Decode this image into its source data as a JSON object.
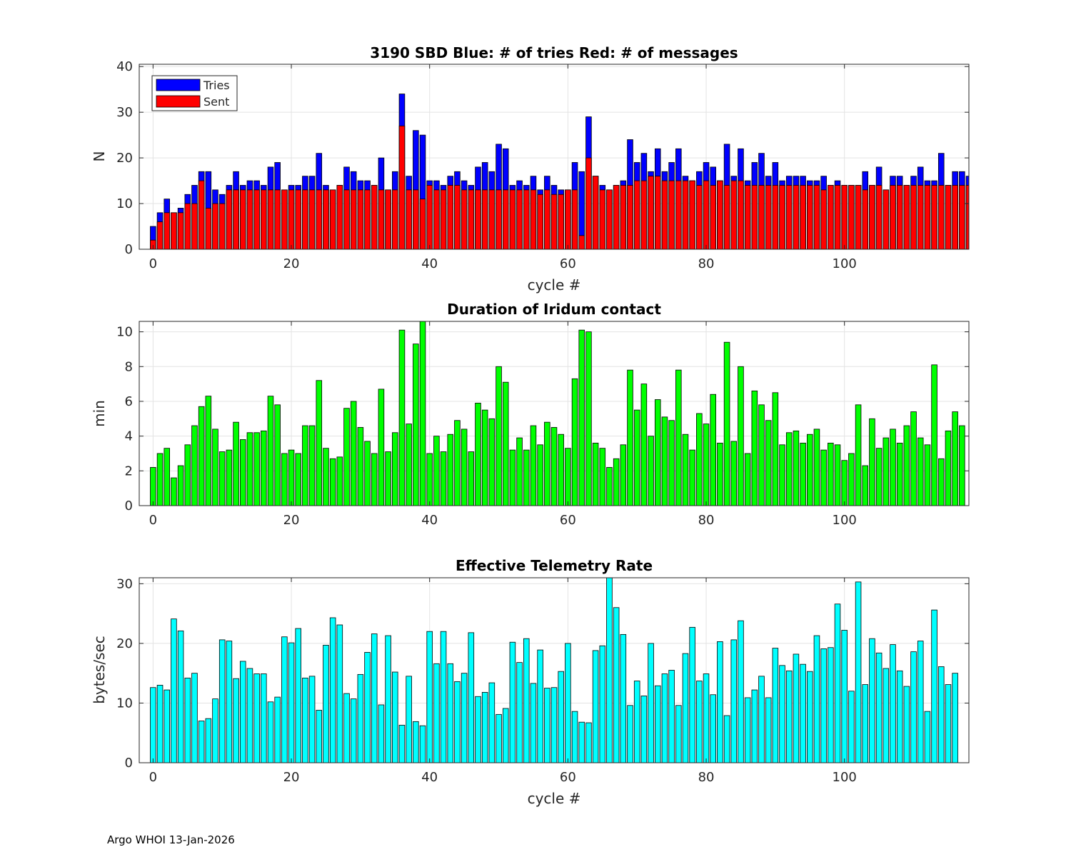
{
  "footer_text": "Argo WHOI 13-Jan-2026",
  "colors": {
    "tries": "#0000ff",
    "sent": "#ff0000",
    "duration": "#00ff00",
    "rate": "#00ffff",
    "grid": "#e3e3e3",
    "axis": "#262626"
  },
  "chart_data": [
    {
      "type": "bar",
      "title": "3190 SBD  Blue: # of tries   Red: # of messages",
      "xlabel": "cycle #",
      "ylabel": "N",
      "xlim": [
        -2,
        118
      ],
      "ylim": [
        0,
        40.5
      ],
      "xticks": [
        0,
        20,
        40,
        60,
        80,
        100
      ],
      "yticks": [
        0,
        10,
        20,
        30,
        40
      ],
      "grid": true,
      "legend": {
        "position": "top-left",
        "entries": [
          "Tries",
          "Sent"
        ]
      },
      "x_start": 0,
      "series": [
        {
          "name": "Tries",
          "values": [
            5,
            8,
            11,
            8,
            9,
            12,
            14,
            17,
            17,
            13,
            12,
            14,
            17,
            14,
            15,
            15,
            14,
            18,
            19,
            13,
            14,
            14,
            16,
            16,
            21,
            14,
            13,
            14,
            18,
            17,
            15,
            15,
            14,
            20,
            13,
            17,
            34,
            16,
            26,
            25,
            15,
            15,
            14,
            16,
            17,
            15,
            14,
            18,
            19,
            17,
            23,
            22,
            14,
            15,
            14,
            16,
            13,
            16,
            14,
            13,
            13,
            19,
            17,
            29,
            16,
            14,
            13,
            14,
            15,
            24,
            19,
            21,
            17,
            22,
            17,
            19,
            22,
            16,
            15,
            17,
            19,
            18,
            15,
            23,
            16,
            22,
            15,
            19,
            21,
            16,
            19,
            15,
            16,
            16,
            16,
            15,
            15,
            16,
            14,
            15,
            14,
            14,
            14,
            17,
            14,
            18,
            13,
            16,
            16,
            14,
            16,
            18,
            15,
            15,
            21,
            14,
            17,
            17,
            16
          ]
        },
        {
          "name": "Sent",
          "values": [
            2,
            6,
            8,
            8,
            8,
            10,
            10,
            15,
            9,
            10,
            10,
            13,
            13,
            13,
            13,
            13,
            13,
            13,
            13,
            13,
            13,
            13,
            13,
            13,
            13,
            13,
            13,
            14,
            13,
            13,
            13,
            13,
            14,
            13,
            13,
            13,
            27,
            13,
            13,
            11,
            14,
            13,
            13,
            14,
            14,
            13,
            13,
            13,
            13,
            13,
            13,
            13,
            13,
            13,
            13,
            13,
            12,
            13,
            12,
            12,
            13,
            13,
            3,
            20,
            16,
            13,
            13,
            14,
            14,
            14,
            15,
            15,
            16,
            16,
            15,
            15,
            15,
            15,
            15,
            14,
            15,
            14,
            15,
            14,
            15,
            15,
            14,
            14,
            14,
            14,
            14,
            14,
            14,
            14,
            14,
            14,
            14,
            13,
            14,
            14,
            14,
            14,
            14,
            13,
            14,
            14,
            13,
            14,
            14,
            14,
            14,
            14,
            14,
            14,
            14,
            14,
            14,
            14,
            14
          ]
        }
      ]
    },
    {
      "type": "bar",
      "title": "Duration of Iridum contact",
      "xlabel": "",
      "ylabel": "min",
      "xlim": [
        -2,
        118
      ],
      "ylim": [
        0,
        10.6
      ],
      "xticks": [
        0,
        20,
        40,
        60,
        80,
        100
      ],
      "yticks": [
        0,
        2,
        4,
        6,
        8,
        10
      ],
      "grid": true,
      "x_start": 0,
      "values": [
        2.2,
        3.0,
        3.3,
        1.6,
        2.3,
        3.5,
        4.6,
        5.7,
        6.3,
        4.4,
        3.1,
        3.2,
        4.8,
        3.8,
        4.2,
        4.2,
        4.3,
        6.3,
        5.8,
        3.0,
        3.2,
        3.0,
        4.6,
        4.6,
        7.2,
        3.3,
        2.7,
        2.8,
        5.6,
        6.0,
        4.5,
        3.7,
        3.0,
        6.7,
        3.1,
        4.2,
        10.1,
        4.7,
        9.3,
        10.7,
        3.0,
        4.0,
        3.1,
        4.1,
        4.9,
        4.4,
        3.1,
        5.9,
        5.5,
        5.0,
        8.0,
        7.1,
        3.2,
        3.9,
        3.2,
        4.6,
        3.5,
        4.8,
        4.5,
        4.1,
        3.3,
        7.3,
        10.1,
        10.0,
        3.6,
        3.3,
        2.2,
        2.7,
        3.5,
        7.8,
        5.5,
        7.0,
        4.0,
        6.1,
        5.1,
        4.9,
        7.8,
        4.1,
        3.2,
        5.3,
        4.7,
        6.4,
        3.6,
        9.4,
        3.7,
        8.0,
        3.0,
        6.6,
        5.8,
        4.9,
        6.5,
        3.5,
        4.2,
        4.3,
        3.6,
        4.1,
        4.4,
        3.2,
        3.6,
        3.5,
        2.6,
        3.0,
        5.8,
        2.3,
        5.0,
        3.3,
        3.9,
        4.4,
        3.6,
        4.6,
        5.4,
        3.9,
        3.5,
        8.1,
        2.7,
        4.3,
        5.4,
        4.6
      ]
    },
    {
      "type": "bar",
      "title": "Effective Telemetry Rate",
      "xlabel": "cycle #",
      "ylabel": "bytes/sec",
      "xlim": [
        -2,
        118
      ],
      "ylim": [
        0,
        31
      ],
      "xticks": [
        0,
        20,
        40,
        60,
        80,
        100
      ],
      "yticks": [
        0,
        10,
        20,
        30
      ],
      "grid": true,
      "x_start": 0,
      "values": [
        12.6,
        13.0,
        12.2,
        24.1,
        22.1,
        14.2,
        15.0,
        7.0,
        7.4,
        10.7,
        20.6,
        20.4,
        14.1,
        17.0,
        15.8,
        14.9,
        14.9,
        10.2,
        11.0,
        21.1,
        20.1,
        22.5,
        14.2,
        14.5,
        8.8,
        19.7,
        24.3,
        23.1,
        11.6,
        10.7,
        14.8,
        18.5,
        21.6,
        9.7,
        21.3,
        15.2,
        6.3,
        14.5,
        6.9,
        6.2,
        22.0,
        16.6,
        22.0,
        16.6,
        13.6,
        15.0,
        21.8,
        11.1,
        11.8,
        13.4,
        8.1,
        9.1,
        20.2,
        16.8,
        20.8,
        13.3,
        18.9,
        12.5,
        12.6,
        15.3,
        20.0,
        8.6,
        6.8,
        6.7,
        18.8,
        19.6,
        31.0,
        26.0,
        21.5,
        9.6,
        13.7,
        11.2,
        20.0,
        12.9,
        14.9,
        15.5,
        9.6,
        18.3,
        22.7,
        13.7,
        14.9,
        11.4,
        20.3,
        7.9,
        20.6,
        23.8,
        10.9,
        12.2,
        14.5,
        10.9,
        19.2,
        16.3,
        15.4,
        18.2,
        16.5,
        15.3,
        21.3,
        19.1,
        19.3,
        26.6,
        22.2,
        12.0,
        30.3,
        13.1,
        20.8,
        18.4,
        15.8,
        19.8,
        15.4,
        12.8,
        18.6,
        20.4,
        8.6,
        25.6,
        16.1,
        13.1,
        15.0
      ]
    }
  ]
}
